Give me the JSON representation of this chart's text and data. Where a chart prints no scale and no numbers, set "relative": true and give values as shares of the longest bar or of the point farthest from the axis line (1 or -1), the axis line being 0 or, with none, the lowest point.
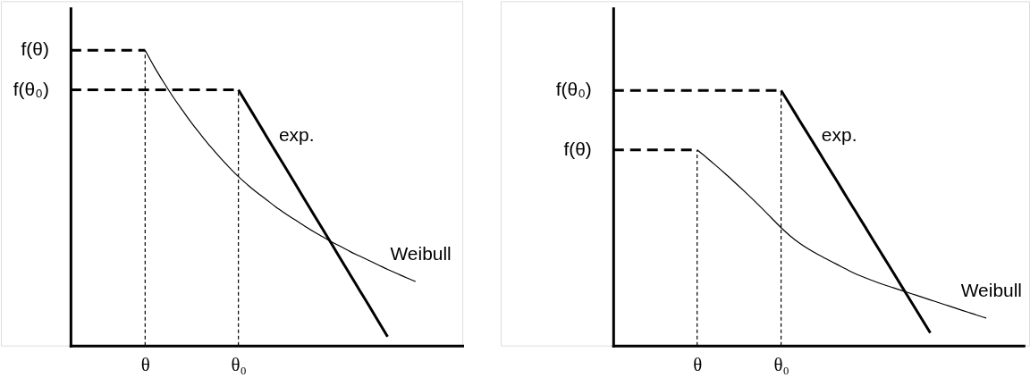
{
  "chart_data": [
    {
      "type": "line",
      "relative": true,
      "categories": [
        null,
        null,
        null,
        null,
        null,
        null,
        null,
        null,
        "θ",
        null,
        null,
        null,
        null,
        null,
        null,
        null,
        null,
        null,
        "θ₀",
        null,
        null,
        null,
        null,
        null,
        null,
        null,
        null,
        null,
        null,
        null,
        null,
        null,
        null,
        null,
        null,
        null,
        null,
        null,
        null,
        null,
        null,
        null,
        null
      ],
      "series": [
        {
          "name": "exp.",
          "color": "#000000",
          "values": [
            null,
            null,
            null,
            null,
            null,
            null,
            null,
            null,
            null,
            null,
            null,
            null,
            null,
            null,
            null,
            null,
            null,
            null,
            0.866,
            0.814,
            0.762,
            0.709,
            0.657,
            0.605,
            0.553,
            0.5,
            0.448,
            0.396,
            0.344,
            0.291,
            0.239,
            0.187,
            0.135,
            0.082,
            0.03,
            null,
            null,
            null,
            null,
            null,
            null,
            null,
            null
          ]
        },
        {
          "name": "Weibull",
          "color": "#000000",
          "values": [
            null,
            null,
            null,
            null,
            null,
            null,
            null,
            null,
            1.0,
            0.943,
            0.891,
            0.842,
            0.797,
            0.753,
            0.713,
            0.674,
            0.638,
            0.604,
            0.572,
            0.544,
            0.518,
            0.494,
            0.47,
            0.448,
            0.427,
            0.407,
            0.387,
            0.369,
            0.351,
            0.335,
            0.318,
            0.303,
            0.288,
            0.273,
            0.258,
            0.244,
            0.23,
            0.217,
            null,
            null,
            null,
            null,
            null
          ]
        }
      ],
      "ref_lines": [
        {
          "axis": "y",
          "value": 1.0,
          "label": "f(θ)",
          "line_style": "dashed"
        },
        {
          "axis": "y",
          "value": 0.866,
          "label": "f(θ₀)",
          "line_style": "dashed"
        },
        {
          "axis": "x",
          "value": "θ",
          "line_style": "dashed"
        },
        {
          "axis": "x",
          "value": "θ₀",
          "line_style": "dashed"
        }
      ]
    },
    {
      "type": "line",
      "relative": true,
      "categories": [
        null,
        null,
        null,
        null,
        null,
        null,
        null,
        null,
        null,
        "θ",
        null,
        null,
        null,
        null,
        null,
        null,
        null,
        null,
        "θ₀",
        null,
        null,
        null,
        null,
        null,
        null,
        null,
        null,
        null,
        null,
        null,
        null,
        null,
        null,
        null,
        null,
        null,
        null,
        null,
        null,
        null,
        null,
        null,
        null,
        null,
        null
      ],
      "series": [
        {
          "name": "exp.",
          "color": "#000000",
          "values": [
            null,
            null,
            null,
            null,
            null,
            null,
            null,
            null,
            null,
            null,
            null,
            null,
            null,
            null,
            null,
            null,
            null,
            null,
            1.0,
            0.941,
            0.881,
            0.822,
            0.763,
            0.703,
            0.644,
            0.584,
            0.525,
            0.466,
            0.406,
            0.347,
            0.288,
            0.228,
            0.169,
            0.109,
            0.05,
            null,
            null,
            null,
            null,
            null,
            null,
            null,
            null,
            null,
            null
          ]
        },
        {
          "name": "Weibull",
          "color": "#000000",
          "values": [
            null,
            null,
            null,
            null,
            null,
            null,
            null,
            null,
            null,
            0.767,
            0.737,
            0.706,
            0.674,
            0.641,
            0.607,
            0.572,
            0.536,
            0.499,
            0.462,
            0.429,
            0.401,
            0.377,
            0.356,
            0.337,
            0.318,
            0.299,
            0.281,
            0.266,
            0.252,
            0.239,
            0.227,
            0.215,
            0.203,
            0.191,
            0.179,
            0.167,
            0.155,
            0.143,
            0.131,
            0.119,
            0.108,
            null,
            null,
            null,
            null
          ]
        }
      ],
      "ref_lines": [
        {
          "axis": "y",
          "value": 1.0,
          "label": "f(θ₀)",
          "line_style": "dashed"
        },
        {
          "axis": "y",
          "value": 0.767,
          "label": "f(θ)",
          "line_style": "dashed"
        },
        {
          "axis": "x",
          "value": "θ",
          "line_style": "dashed"
        },
        {
          "axis": "x",
          "value": "θ₀",
          "line_style": "dashed"
        }
      ]
    }
  ]
}
